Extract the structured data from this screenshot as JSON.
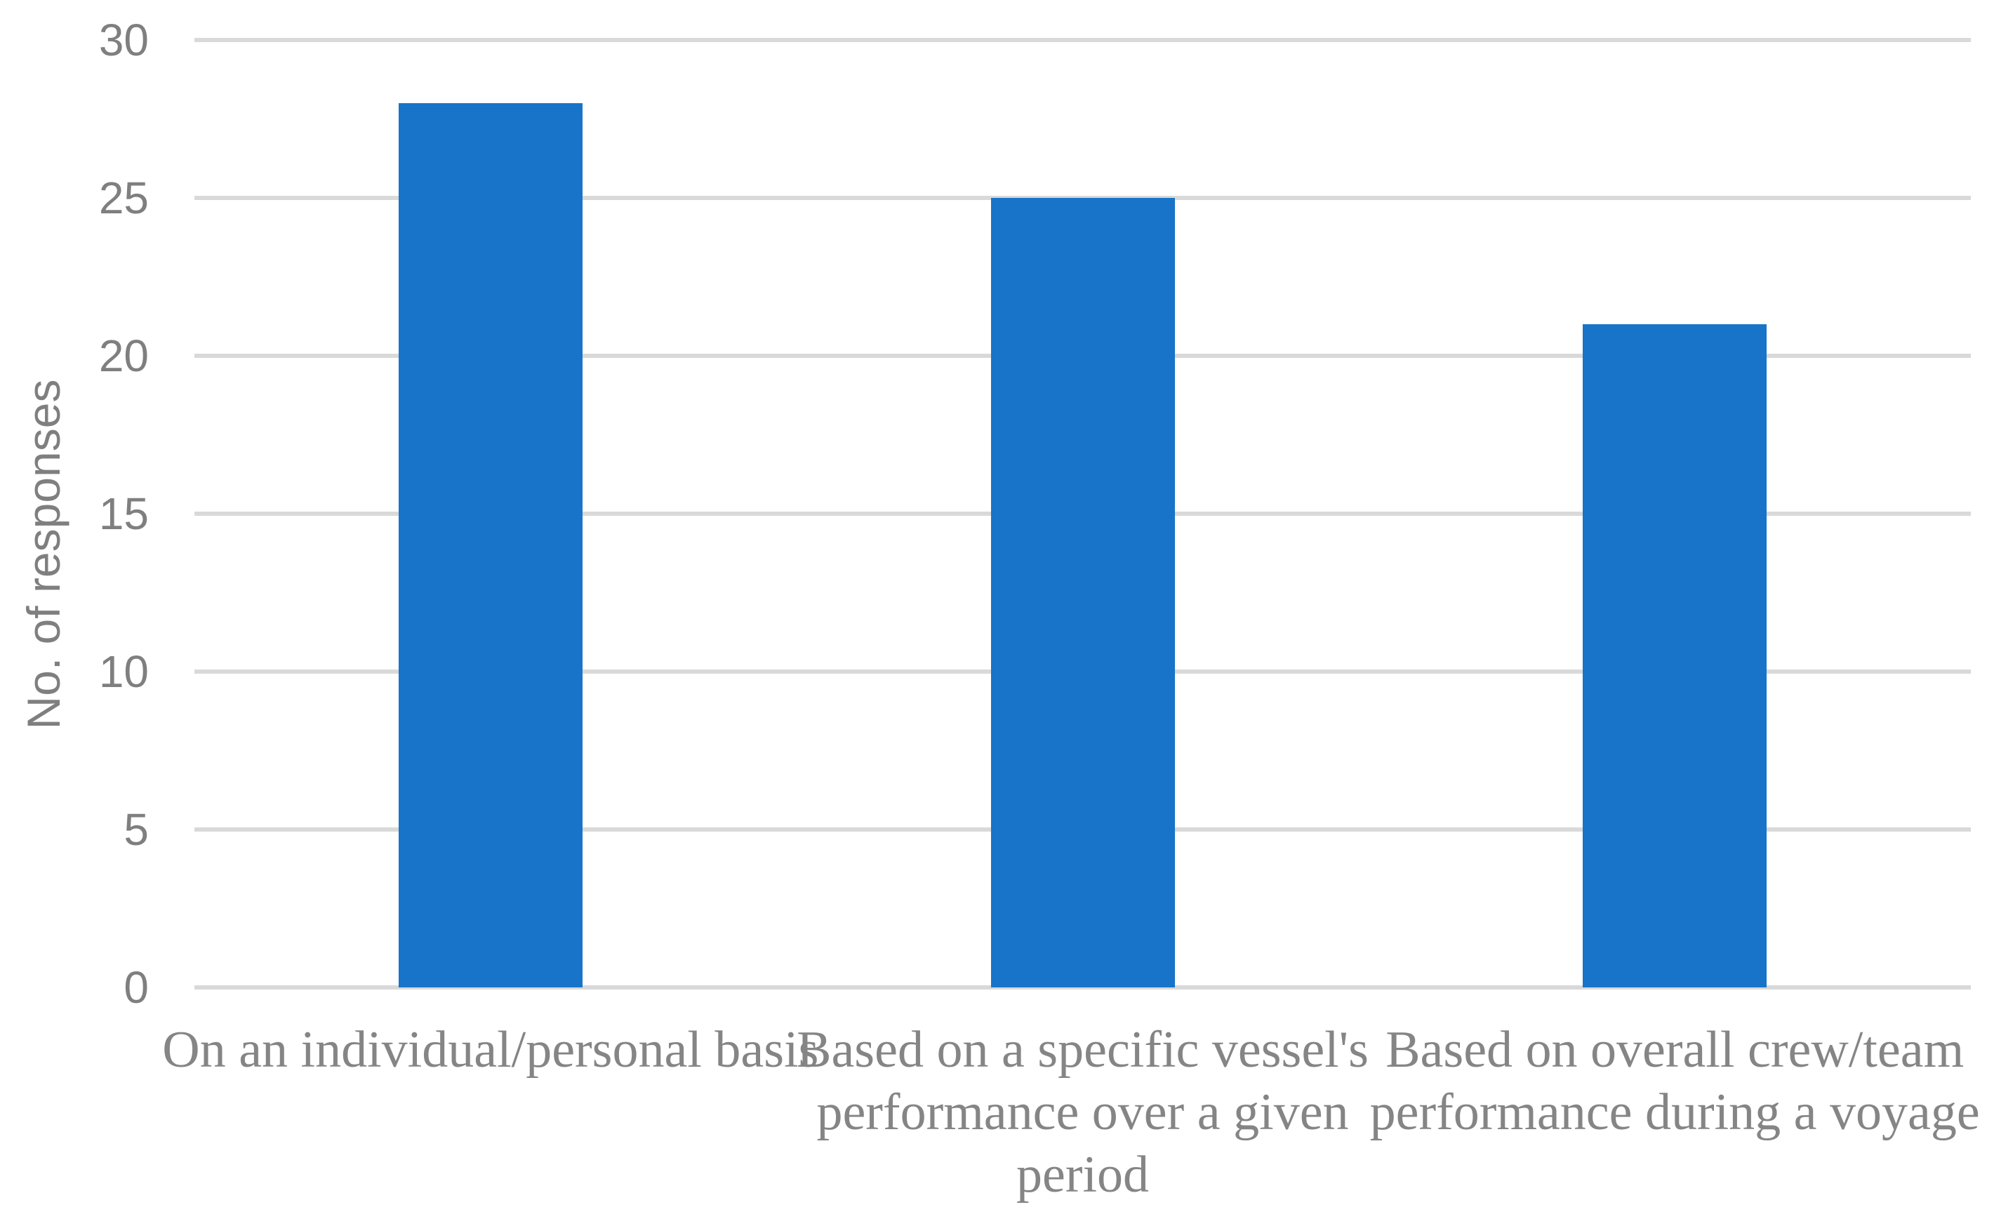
{
  "chart_data": {
    "type": "bar",
    "title": "",
    "xlabel": "",
    "ylabel": "No. of responses",
    "categories": [
      "On an individual/personal basis",
      "Based on a specific vessel's performance over a given period",
      "Based on overall crew/team performance during a voyage"
    ],
    "values": [
      28,
      25,
      21
    ],
    "ylim": [
      0,
      30
    ],
    "ytick_step": 5,
    "ytick_labels": [
      "0",
      "5",
      "10",
      "15",
      "20",
      "25",
      "30"
    ],
    "grid": true,
    "legend_position": "none",
    "colors": {
      "bar_fill": "#1774C8",
      "gridline": "#D9D9D9",
      "tick_text": "#7F7F7F",
      "category_text": "#858585",
      "axis_title_text": "#7F7F7F"
    }
  }
}
